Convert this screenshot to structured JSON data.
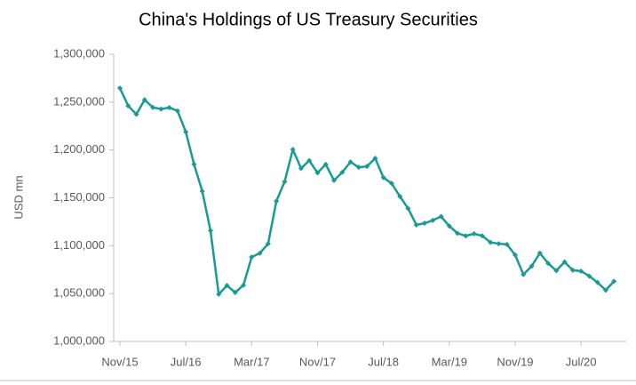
{
  "chart_data": {
    "type": "line",
    "title": "China's Holdings of US Treasury Securities",
    "y_label": "USD mn",
    "categories": [
      "Nov/15",
      null,
      null,
      null,
      null,
      null,
      null,
      null,
      "Jul/16",
      null,
      null,
      null,
      null,
      null,
      null,
      null,
      "Mar/17",
      null,
      null,
      null,
      null,
      null,
      null,
      null,
      "Nov/17",
      null,
      null,
      null,
      null,
      null,
      null,
      null,
      "Jul/18",
      null,
      null,
      null,
      null,
      null,
      null,
      null,
      "Mar/19",
      null,
      null,
      null,
      null,
      null,
      null,
      null,
      "Nov/19",
      null,
      null,
      null,
      null,
      null,
      null,
      null,
      "Jul/20",
      null,
      null,
      null,
      null
    ],
    "values": [
      1264600,
      1246100,
      1237300,
      1252400,
      1244400,
      1242800,
      1244300,
      1240800,
      1218900,
      1185100,
      1157000,
      1115700,
      1049300,
      1058400,
      1051100,
      1058800,
      1088100,
      1092200,
      1102100,
      1146500,
      1166800,
      1200500,
      1180800,
      1189000,
      1176100,
      1184900,
      1168200,
      1176700,
      1187500,
      1181900,
      1182800,
      1191300,
      1171200,
      1165100,
      1151500,
      1138900,
      1121700,
      1123500,
      1126500,
      1130500,
      1120500,
      1113000,
      1110200,
      1112500,
      1110300,
      1103500,
      1102100,
      1101400,
      1090300,
      1069900,
      1078600,
      1092300,
      1081600,
      1073900,
      1083000,
      1074400,
      1073400,
      1068300,
      1061600,
      1053500,
      1062800
    ],
    "color": "#1a9a94",
    "ylim": [
      1000000,
      1300000
    ],
    "yticks": [
      {
        "value": 1000000,
        "label": "1,000,000"
      },
      {
        "value": 1050000,
        "label": "1,050,000"
      },
      {
        "value": 1100000,
        "label": "1,100,000"
      },
      {
        "value": 1150000,
        "label": "1,150,000"
      },
      {
        "value": 1200000,
        "label": "1,200,000"
      },
      {
        "value": 1250000,
        "label": "1,250,000"
      },
      {
        "value": 1300000,
        "label": "1,300,000"
      }
    ]
  }
}
